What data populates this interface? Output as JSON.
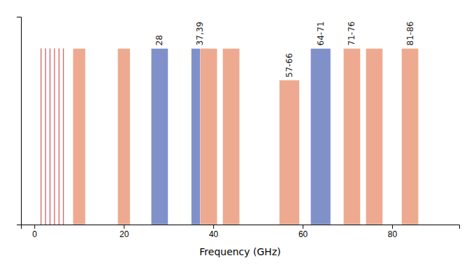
{
  "chart_data": {
    "type": "bar",
    "x_label": "Frequency (GHz)",
    "x": [
      10,
      20,
      28,
      37,
      39,
      44,
      57,
      64,
      71,
      76,
      84
    ],
    "values": [
      1.0,
      1.0,
      1.0,
      1.0,
      1.0,
      1.0,
      0.82,
      1.0,
      1.0,
      1.0,
      1.0
    ],
    "widths": [
      2.8,
      2.8,
      3.8,
      3.8,
      3.8,
      3.8,
      4.5,
      4.5,
      3.8,
      3.8,
      3.8
    ],
    "colors": [
      "#EDAA90",
      "#EDAA90",
      "#8090C8",
      "#8090C8",
      "#EDAA90",
      "#EDAA90",
      "#EDAA90",
      "#8090C8",
      "#EDAA90",
      "#EDAA90",
      "#EDAA90"
    ],
    "labels": [
      null,
      null,
      "28",
      "37,39",
      null,
      null,
      "57-66",
      "64-71",
      "71-76",
      null,
      "81-86"
    ],
    "xlim": [
      -3,
      95
    ],
    "xticks": [
      0,
      20,
      40,
      60,
      80
    ],
    "ylim": [
      0,
      1.18
    ],
    "yticks": [],
    "tick_labels": "x",
    "grid": false,
    "vlines": {
      "x": [
        1.5,
        2.5,
        3.5,
        4.5,
        5.5,
        6.5
      ],
      "ymax": 1.0,
      "color": "#CC3333"
    }
  }
}
